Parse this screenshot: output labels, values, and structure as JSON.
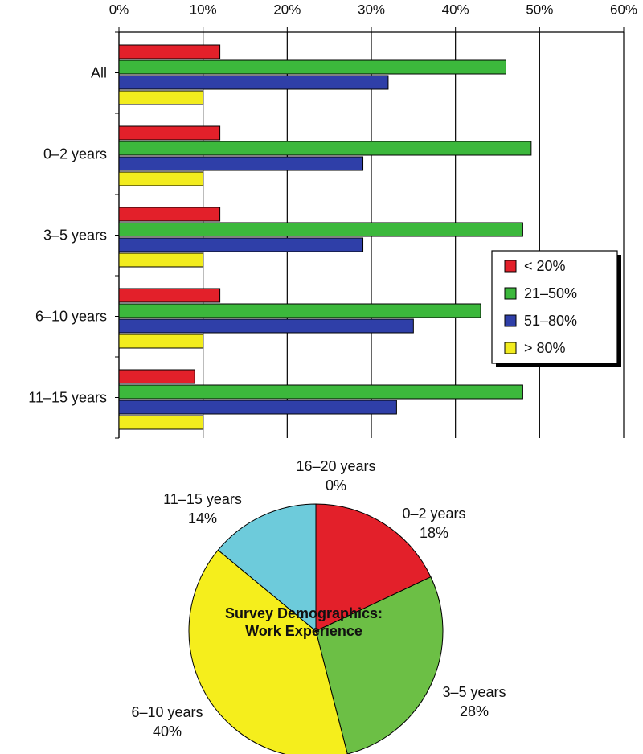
{
  "chart_data": [
    {
      "type": "bar",
      "orientation": "horizontal",
      "categories": [
        "All",
        "0–2 years",
        "3–5 years",
        "6–10 years",
        "11–15 years"
      ],
      "series": [
        {
          "name": "< 20%",
          "color": "#e3202a",
          "values": [
            12,
            12,
            12,
            12,
            9
          ]
        },
        {
          "name": "21–50%",
          "color": "#3cb83c",
          "values": [
            46,
            49,
            48,
            43,
            48
          ]
        },
        {
          "name": "51–80%",
          "color": "#2f3fa8",
          "values": [
            32,
            29,
            29,
            35,
            33
          ]
        },
        {
          "name": "> 80%",
          "color": "#f2ec1e",
          "values": [
            10,
            10,
            10,
            10,
            10
          ]
        }
      ],
      "xlim": [
        0,
        60
      ],
      "xticks": [
        {
          "value": 0,
          "label": "0%"
        },
        {
          "value": 10,
          "label": "10%"
        },
        {
          "value": 20,
          "label": "20%"
        },
        {
          "value": 30,
          "label": "30%"
        },
        {
          "value": 40,
          "label": "40%"
        },
        {
          "value": 50,
          "label": "50%"
        },
        {
          "value": 60,
          "label": "60%"
        }
      ],
      "grid": true,
      "legend": "right"
    },
    {
      "type": "pie",
      "title": "Survey Demographics: Work Experience",
      "categories": [
        "0–2 years",
        "3–5 years",
        "6–10 years",
        "11–15 years",
        "16–20 years"
      ],
      "values": [
        18,
        28,
        40,
        14,
        0
      ],
      "value_labels": [
        "18%",
        "28%",
        "40%",
        "14%",
        "0%"
      ],
      "colors": [
        "#e3202a",
        "#6cbf45",
        "#f5ee1c",
        "#6dcbdb",
        "#cccccc"
      ]
    }
  ]
}
